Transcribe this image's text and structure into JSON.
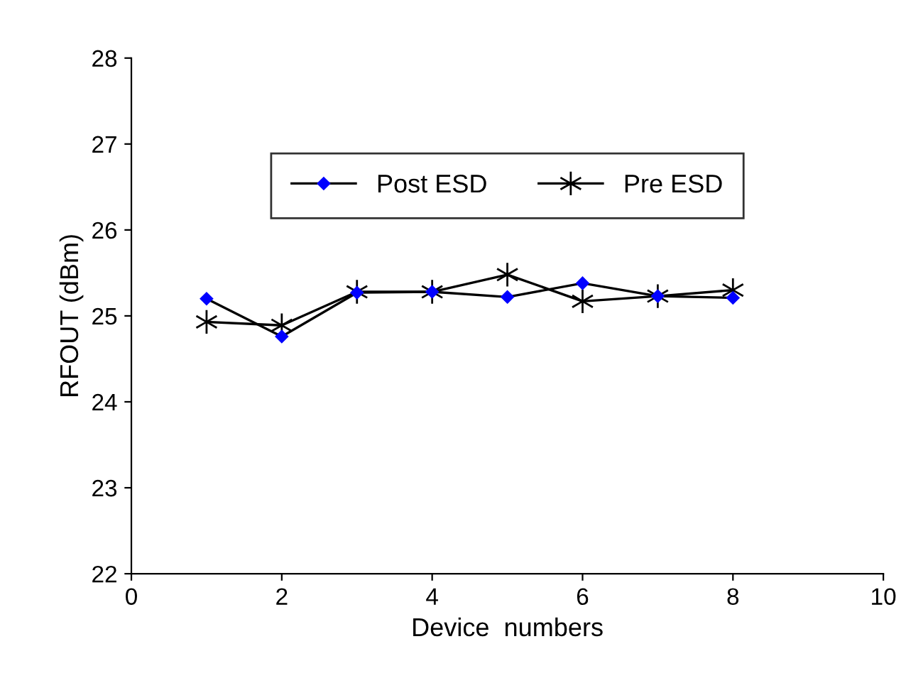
{
  "chart_data": {
    "type": "line",
    "xlabel": "Device  numbers",
    "ylabel": "RFOUT (dBm)",
    "x": [
      1,
      2,
      3,
      4,
      5,
      6,
      7,
      8
    ],
    "series": [
      {
        "name": "Post ESD",
        "color": "#0000ff",
        "marker": "diamond",
        "values": [
          25.2,
          24.76,
          25.27,
          25.28,
          25.22,
          25.38,
          25.23,
          25.21
        ]
      },
      {
        "name": "Pre ESD",
        "color": "#000000",
        "marker": "cross",
        "values": [
          24.93,
          24.89,
          25.28,
          25.28,
          25.48,
          25.17,
          25.23,
          25.3
        ]
      }
    ],
    "xlim": [
      0,
      10
    ],
    "xticks": [
      0,
      2,
      4,
      6,
      8,
      10
    ],
    "ylim": [
      22,
      28
    ],
    "yticks": [
      22,
      23,
      24,
      25,
      26,
      27,
      28
    ],
    "grid": false,
    "legend": "top",
    "line_style": "solid"
  }
}
